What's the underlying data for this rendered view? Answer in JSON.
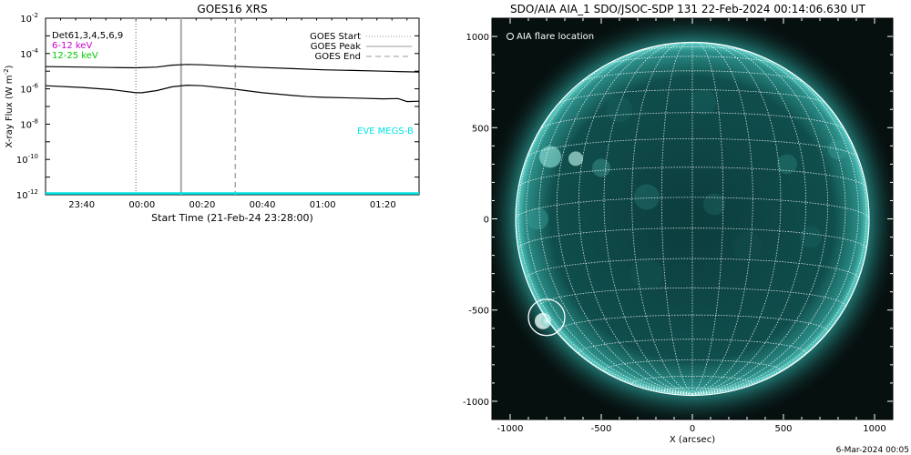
{
  "chart_data": [
    {
      "type": "line",
      "title": "GOES16 XRS",
      "xlabel": "Start Time (21-Feb-24 23:28:00)",
      "ylabel": "X-ray Flux (W m^-2)",
      "ylabel_base": "X-ray Flux (W m",
      "ylabel_exp": "-2",
      "ylabel_tail": ")",
      "yscale": "log",
      "xlim": [
        "23:28",
        "01:32"
      ],
      "ylim": [
        1e-12,
        0.01
      ],
      "x_ticks": [
        "23:40",
        "00:00",
        "00:20",
        "00:40",
        "01:00",
        "01:20"
      ],
      "y_ticks": [
        {
          "base": "10",
          "exp": "-2"
        },
        {
          "base": "10",
          "exp": "-4"
        },
        {
          "base": "10",
          "exp": "-6"
        },
        {
          "base": "10",
          "exp": "-8"
        },
        {
          "base": "10",
          "exp": "-10"
        },
        {
          "base": "10",
          "exp": "-12"
        }
      ],
      "legend_left": [
        {
          "text": "Det61,3,4,5,6,9",
          "color": "#000000"
        },
        {
          "text": "6-12 keV",
          "color": "#cc00cc"
        },
        {
          "text": "12-25 keV",
          "color": "#00cc00"
        }
      ],
      "legend_right": [
        {
          "text": "GOES Start",
          "style": "dotted"
        },
        {
          "text": "GOES Peak",
          "style": "solid"
        },
        {
          "text": "GOES End",
          "style": "dashed"
        }
      ],
      "annotation": {
        "text": "EVE MEGS-B",
        "color": "#00e5e5"
      },
      "events": {
        "start": "23:58",
        "peak": "00:13",
        "end": "00:31"
      },
      "series": [
        {
          "color": "#000000",
          "x": [
            "23:28",
            "23:40",
            "23:50",
            "23:58",
            "00:05",
            "00:10",
            "00:15",
            "00:20",
            "00:30",
            "00:40",
            "00:50",
            "01:00",
            "01:10",
            "01:20",
            "01:25",
            "01:32"
          ],
          "values": [
            1.8e-05,
            1.7e-05,
            1.6e-05,
            1.55e-05,
            1.7e-05,
            2.2e-05,
            2.4e-05,
            2.3e-05,
            1.9e-05,
            1.6e-05,
            1.4e-05,
            1.2e-05,
            1.1e-05,
            1e-05,
            9.5e-06,
            9e-06
          ]
        },
        {
          "color": "#000000",
          "x": [
            "23:28",
            "23:40",
            "23:50",
            "23:58",
            "00:00",
            "00:05",
            "00:10",
            "00:15",
            "00:20",
            "00:30",
            "00:40",
            "00:50",
            "00:55",
            "01:00",
            "01:10",
            "01:20",
            "01:25",
            "01:28",
            "01:32"
          ],
          "values": [
            1.5e-06,
            1.2e-06,
            9e-07,
            6e-07,
            6e-07,
            8e-07,
            1.3e-06,
            1.6e-06,
            1.5e-06,
            1e-06,
            6e-07,
            4.2e-07,
            3.6e-07,
            3.3e-07,
            3e-07,
            2.7e-07,
            2.8e-07,
            1.9e-07,
            2e-07
          ]
        },
        {
          "color": "#00e5e5",
          "x": [
            "23:28",
            "01:32"
          ],
          "values": [
            1.2e-12,
            1.2e-12
          ]
        }
      ]
    },
    {
      "type": "scatter",
      "title": "SDO/AIA AIA_1 SDO/JSOC-SDP 131 22-Feb-2024 00:14:06.630 UT",
      "xlabel": "X (arcsec)",
      "ylabel": "",
      "xlim": [
        -1100,
        1100
      ],
      "ylim": [
        -1100,
        1100
      ],
      "x_ticks": [
        "-1000",
        "-500",
        "0",
        "500",
        "1000"
      ],
      "y_ticks": [
        "1000",
        "500",
        "0",
        "-500",
        "-1000"
      ],
      "legend": {
        "text": "AIA flare location",
        "marker": "circle",
        "color": "#ffffff"
      },
      "solar_disk": {
        "radius_arcsec": 970,
        "grid_step_deg": 10,
        "b0_deg": -7,
        "image_color": "#0a4a48",
        "limb_color": "#3fb8b0"
      },
      "flare_location": {
        "x": -800,
        "y": -540,
        "radius_arcsec": 100
      }
    }
  ],
  "footer": {
    "timestamp": "6-Mar-2024 00:05"
  }
}
